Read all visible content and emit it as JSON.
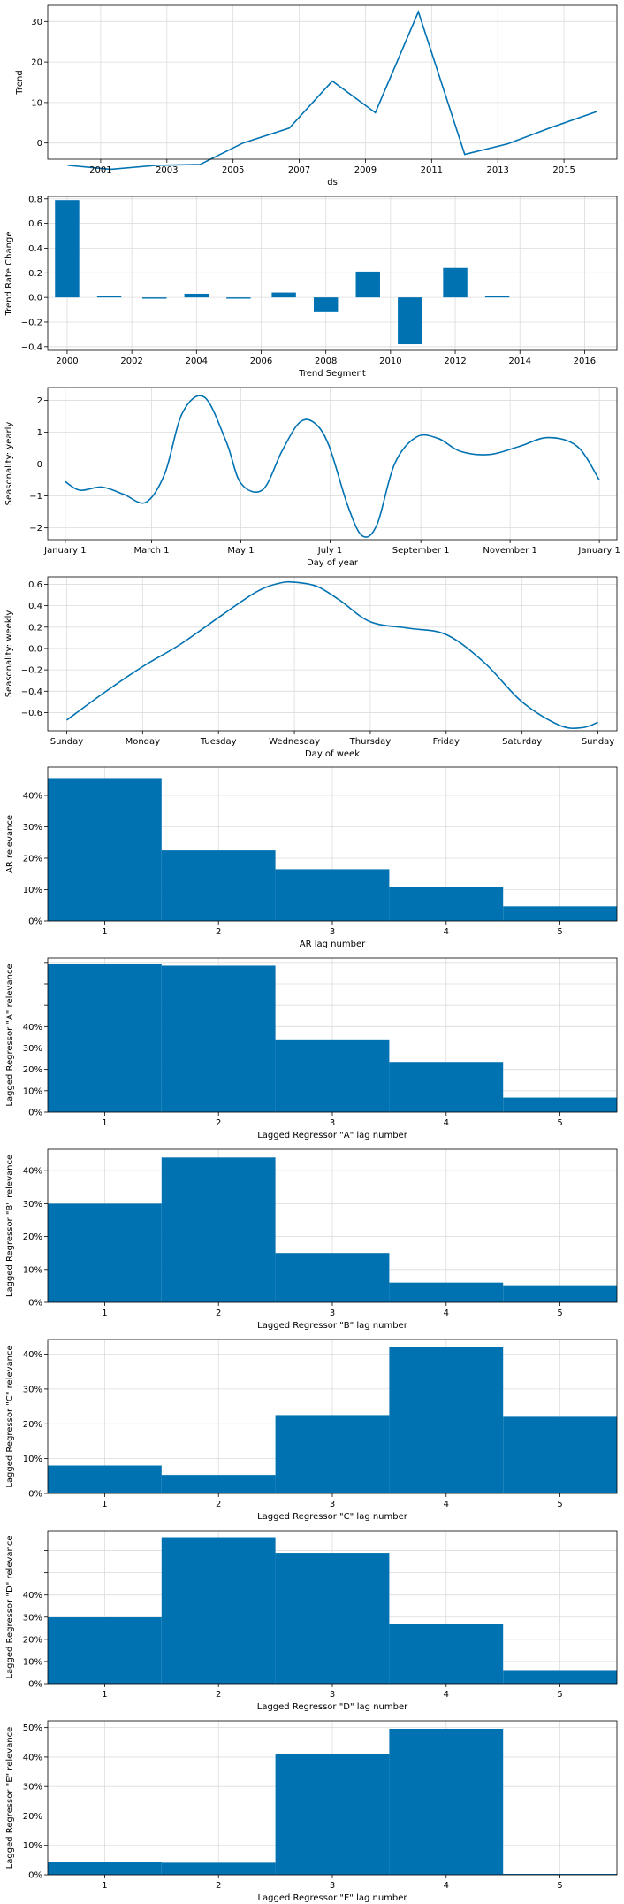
{
  "colors": {
    "series": "#0072B2",
    "grid": "#dcdcdc",
    "axis": "#000000"
  },
  "chart_data": [
    {
      "id": "trend",
      "type": "line",
      "xlabel": "ds",
      "ylabel": "Trend",
      "x_axis": "year",
      "xlim": [
        1999.4,
        2016.6
      ],
      "ylim": [
        -4,
        34
      ],
      "xticks": [
        2001,
        2003,
        2005,
        2007,
        2009,
        2011,
        2013,
        2015
      ],
      "xtick_labels": [
        "2001",
        "2003",
        "2005",
        "2007",
        "2009",
        "2011",
        "2013",
        "2015"
      ],
      "yticks": [
        0,
        10,
        20,
        30
      ],
      "ytick_labels": [
        "0",
        "10",
        "20",
        "30"
      ],
      "grid": true,
      "series": [
        {
          "x": [
            2000.0,
            2001.3,
            2002.7,
            2004.0,
            2005.3,
            2006.7,
            2008.0,
            2009.3,
            2010.6,
            2012.0,
            2013.3,
            2014.6,
            2016.0
          ],
          "y": [
            -5.5,
            -6.5,
            -5.5,
            -5.3,
            0.0,
            3.7,
            15.3,
            7.5,
            32.4,
            -2.8,
            -0.2,
            3.8,
            7.8
          ]
        }
      ]
    },
    {
      "id": "trend-rate",
      "type": "bar",
      "xlabel": "Trend Segment",
      "ylabel": "Trend Rate Change",
      "x_axis": "year",
      "xlim": [
        1999.4,
        2017.0
      ],
      "ylim": [
        -0.43,
        0.82
      ],
      "xticks": [
        2000,
        2002,
        2004,
        2006,
        2008,
        2010,
        2012,
        2014,
        2016
      ],
      "xtick_labels": [
        "2000",
        "2002",
        "2004",
        "2006",
        "2008",
        "2010",
        "2012",
        "2014",
        "2016"
      ],
      "yticks": [
        -0.4,
        -0.2,
        0.0,
        0.2,
        0.4,
        0.6,
        0.8
      ],
      "ytick_labels": [
        "−0.4",
        "−0.2",
        "0.0",
        "0.2",
        "0.4",
        "0.6",
        "0.8"
      ],
      "grid": true,
      "bar_width": 0.75,
      "x": [
        2000.0,
        2001.3,
        2002.7,
        2004.0,
        2005.3,
        2006.7,
        2008.0,
        2009.3,
        2010.6,
        2012.0,
        2013.3
      ],
      "values": [
        0.79,
        0.01,
        -0.01,
        0.03,
        -0.01,
        0.04,
        -0.12,
        0.21,
        -0.38,
        0.24,
        0.01
      ]
    },
    {
      "id": "seasonality-yearly",
      "type": "line",
      "xlabel": "Day of year",
      "ylabel": "Seasonality: yearly",
      "xlim": [
        -12,
        377
      ],
      "ylim": [
        -2.37,
        2.4
      ],
      "xticks": [
        0,
        59,
        120,
        181,
        243,
        304,
        365
      ],
      "xtick_labels": [
        "January 1",
        "March 1",
        "May 1",
        "July 1",
        "September 1",
        "November 1",
        "January 1"
      ],
      "yticks": [
        -2,
        -1,
        0,
        1,
        2
      ],
      "ytick_labels": [
        "−2",
        "−1",
        "0",
        "1",
        "2"
      ],
      "grid": true,
      "series": [
        {
          "x": [
            0,
            10,
            25,
            40,
            55,
            68,
            80,
            95,
            110,
            120,
            135,
            148,
            160,
            170,
            180,
            193,
            203,
            213,
            225,
            240,
            255,
            270,
            290,
            310,
            330,
            350,
            365
          ],
          "y": [
            -0.55,
            -0.82,
            -0.72,
            -0.95,
            -1.2,
            -0.3,
            1.6,
            2.1,
            0.7,
            -0.6,
            -0.8,
            0.4,
            1.3,
            1.3,
            0.6,
            -1.3,
            -2.25,
            -1.9,
            0.0,
            0.85,
            0.8,
            0.4,
            0.3,
            0.55,
            0.83,
            0.55,
            -0.5
          ]
        }
      ]
    },
    {
      "id": "seasonality-weekly",
      "type": "line",
      "xlabel": "Day of week",
      "ylabel": "Seasonality: weekly",
      "xlim": [
        -0.25,
        7.25
      ],
      "ylim": [
        -0.77,
        0.67
      ],
      "xticks": [
        0,
        1,
        2,
        3,
        4,
        5,
        6,
        7
      ],
      "xtick_labels": [
        "Sunday",
        "Monday",
        "Tuesday",
        "Wednesday",
        "Thursday",
        "Friday",
        "Saturday",
        "Sunday"
      ],
      "yticks": [
        -0.6,
        -0.4,
        -0.2,
        0.0,
        0.2,
        0.4,
        0.6
      ],
      "ytick_labels": [
        "−0.6",
        "−0.4",
        "−0.2",
        "0.0",
        "0.2",
        "0.4",
        "0.6"
      ],
      "grid": true,
      "series": [
        {
          "x": [
            0,
            0.5,
            1,
            1.5,
            2,
            2.5,
            2.8,
            3,
            3.3,
            3.6,
            4,
            4.5,
            5,
            5.5,
            6,
            6.5,
            6.8,
            7
          ],
          "y": [
            -0.67,
            -0.41,
            -0.17,
            0.04,
            0.29,
            0.53,
            0.61,
            0.62,
            0.58,
            0.45,
            0.25,
            0.19,
            0.13,
            -0.13,
            -0.5,
            -0.72,
            -0.74,
            -0.69
          ]
        }
      ]
    },
    {
      "id": "ar-relevance",
      "type": "bar",
      "xlabel": "AR lag number",
      "ylabel": "AR relevance",
      "categories": [
        "1",
        "2",
        "3",
        "4",
        "5"
      ],
      "values": [
        45.5,
        22.5,
        16.5,
        10.8,
        4.7
      ],
      "ylim": [
        0,
        49
      ],
      "yticks": [
        0,
        10,
        20,
        30,
        40
      ],
      "ytick_labels": [
        "0%",
        "10%",
        "20%",
        "30%",
        "40%"
      ],
      "grid": true
    },
    {
      "id": "lagged-a",
      "type": "bar",
      "xlabel": "Lagged Regressor \"A\" lag number",
      "ylabel": "Lagged Regressor \"A\" relevance",
      "categories": [
        "1",
        "2",
        "3",
        "4",
        "5"
      ],
      "values": [
        69.5,
        68.5,
        34.0,
        23.5,
        6.8
      ],
      "ylim": [
        0,
        72
      ],
      "yticks": [
        0,
        10,
        20,
        30,
        40,
        50,
        60,
        70
      ],
      "ytick_labels": [
        "0%",
        "10%",
        "20%",
        "30%",
        "40%",
        "",
        "",
        ""
      ],
      "grid": true
    },
    {
      "id": "lagged-b",
      "type": "bar",
      "xlabel": "Lagged Regressor \"B\" lag number",
      "ylabel": "Lagged Regressor \"B\" relevance",
      "categories": [
        "1",
        "2",
        "3",
        "4",
        "5"
      ],
      "values": [
        30.0,
        44.0,
        15.0,
        6.0,
        5.2
      ],
      "ylim": [
        0,
        46.5
      ],
      "yticks": [
        0,
        10,
        20,
        30,
        40
      ],
      "ytick_labels": [
        "0%",
        "10%",
        "20%",
        "30%",
        "40%"
      ],
      "grid": true
    },
    {
      "id": "lagged-c",
      "type": "bar",
      "xlabel": "Lagged Regressor \"C\" lag number",
      "ylabel": "Lagged Regressor \"C\" relevance",
      "categories": [
        "1",
        "2",
        "3",
        "4",
        "5"
      ],
      "values": [
        8.0,
        5.3,
        22.5,
        42.0,
        22.0
      ],
      "ylim": [
        0,
        44.2
      ],
      "yticks": [
        0,
        10,
        20,
        30,
        40
      ],
      "ytick_labels": [
        "0%",
        "10%",
        "20%",
        "30%",
        "40%"
      ],
      "grid": true
    },
    {
      "id": "lagged-d",
      "type": "bar",
      "xlabel": "Lagged Regressor \"D\" lag number",
      "ylabel": "Lagged Regressor \"D\" relevance",
      "categories": [
        "1",
        "2",
        "3",
        "4",
        "5"
      ],
      "values": [
        29.9,
        66.0,
        59.0,
        26.9,
        5.8
      ],
      "ylim": [
        0,
        69
      ],
      "yticks": [
        0,
        10,
        20,
        30,
        40,
        50,
        60
      ],
      "ytick_labels": [
        "0%",
        "10%",
        "20%",
        "30%",
        "40%",
        "",
        ""
      ],
      "grid": true
    },
    {
      "id": "lagged-e",
      "type": "bar",
      "xlabel": "Lagged Regressor \"E\" lag number",
      "ylabel": "Lagged Regressor \"E\" relevance",
      "categories": [
        "1",
        "2",
        "3",
        "4",
        "5"
      ],
      "values": [
        4.5,
        4.1,
        41.0,
        49.6,
        0.3
      ],
      "ylim": [
        0,
        52.3
      ],
      "yticks": [
        0,
        10,
        20,
        30,
        40,
        50
      ],
      "ytick_labels": [
        "0%",
        "10%",
        "20%",
        "30%",
        "40%",
        "50%"
      ],
      "grid": true
    }
  ]
}
